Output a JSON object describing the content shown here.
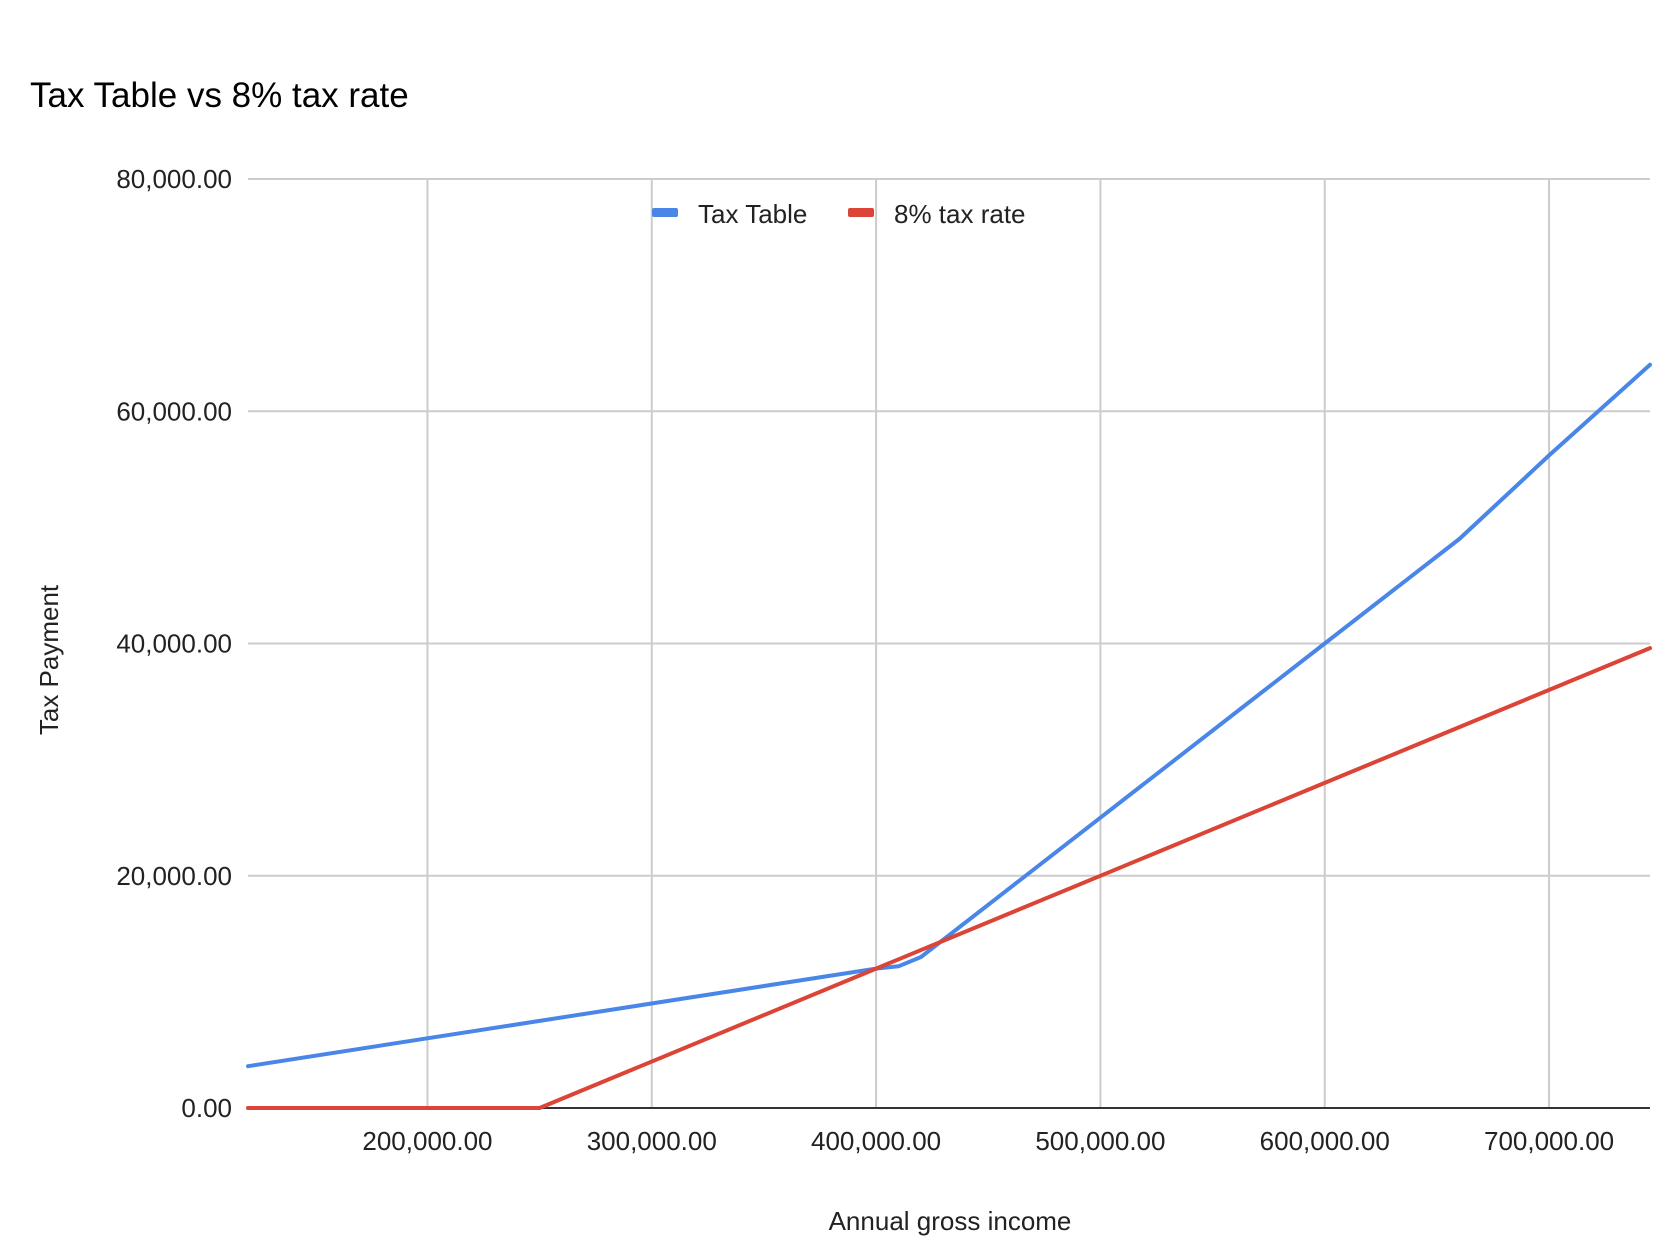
{
  "chart_data": {
    "type": "line",
    "title": "Tax Table vs 8% tax rate",
    "xlabel": "Annual gross income",
    "ylabel": "Tax Payment",
    "xlim": [
      120000,
      745000
    ],
    "ylim": [
      0,
      80000
    ],
    "x_ticks": [
      200000,
      300000,
      400000,
      500000,
      600000,
      700000
    ],
    "x_tick_labels": [
      "200,000.00",
      "300,000.00",
      "400,000.00",
      "500,000.00",
      "600,000.00",
      "700,000.00"
    ],
    "y_ticks": [
      0,
      20000,
      40000,
      60000,
      80000
    ],
    "y_tick_labels": [
      "0.00",
      "20,000.00",
      "40,000.00",
      "60,000.00",
      "80,000.00"
    ],
    "grid": true,
    "legend_position": "top-center",
    "series": [
      {
        "name": "Tax Table",
        "color": "#4A86E8",
        "points": [
          [
            120000,
            3600
          ],
          [
            250000,
            7500
          ],
          [
            400000,
            12000
          ],
          [
            410000,
            12200
          ],
          [
            420000,
            13000
          ],
          [
            500000,
            25000
          ],
          [
            600000,
            40000
          ],
          [
            660000,
            49000
          ],
          [
            670000,
            50800
          ],
          [
            700000,
            56200
          ],
          [
            745000,
            64000
          ]
        ]
      },
      {
        "name": "8% tax rate",
        "color": "#DB4437",
        "points": [
          [
            120000,
            0
          ],
          [
            250000,
            0
          ],
          [
            400000,
            12000
          ],
          [
            500000,
            20000
          ],
          [
            600000,
            28000
          ],
          [
            745000,
            39600
          ]
        ]
      }
    ]
  }
}
